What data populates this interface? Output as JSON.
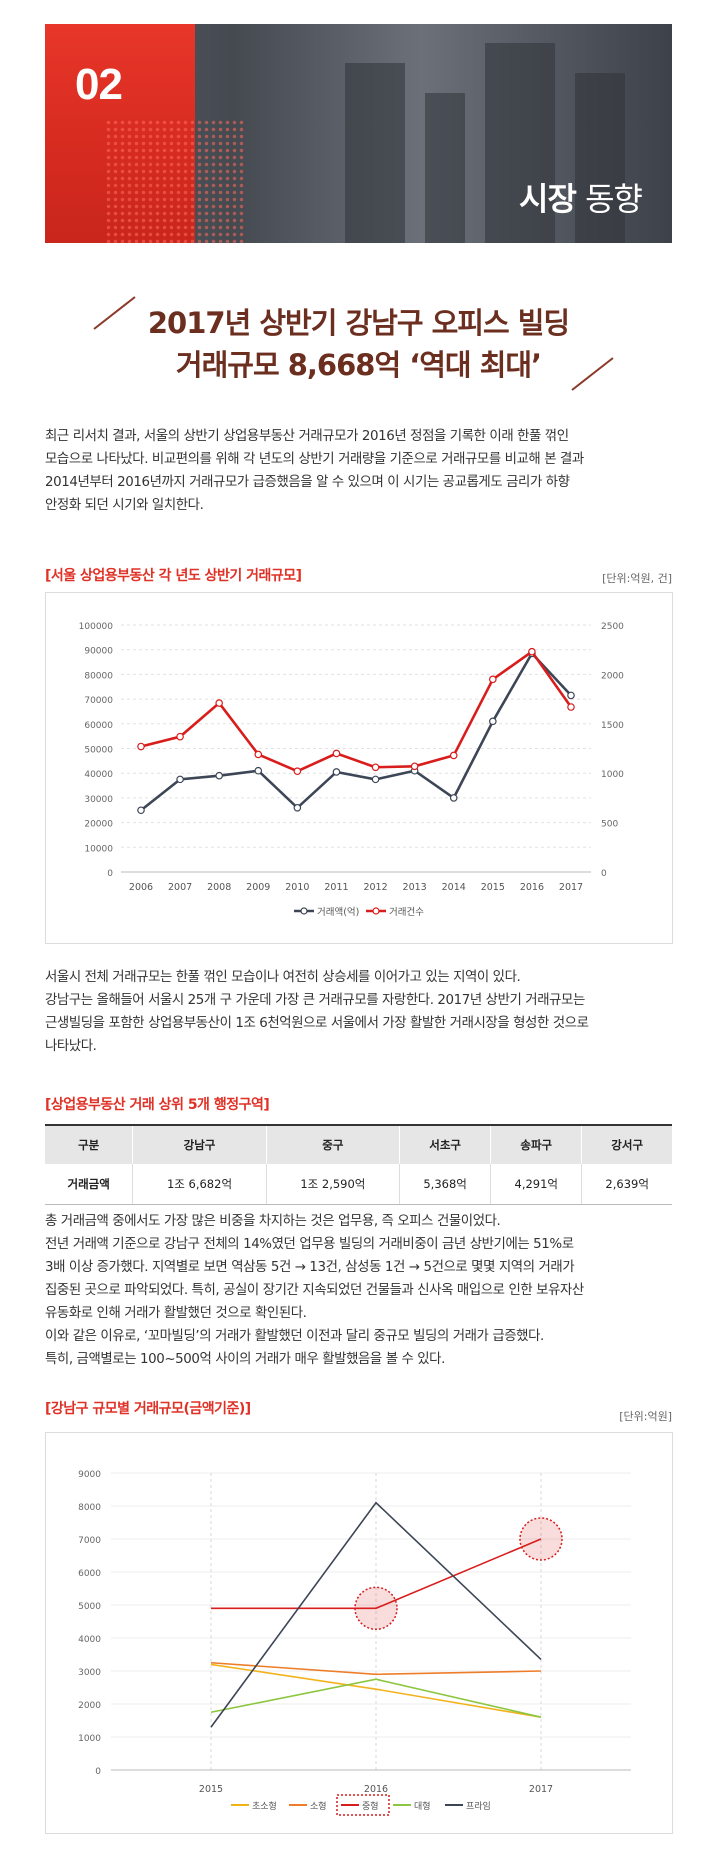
{
  "hero": {
    "number": "02",
    "title_bold": "시장",
    "title_rest": " 동향"
  },
  "headline": {
    "line1": "2017년 상반기 강남구 오피스 빌딩",
    "line2": "거래규모 8,668억 ‘역대 최대’"
  },
  "intro": [
    "최근 리서치 결과, 서울의 상반기 상업용부동산 거래규모가 2016년 정점을 기록한 이래 한풀 꺾인",
    "모습으로 나타났다. 비교편의를 위해 각 년도의 상반기 거래량을 기준으로 거래규모를 비교해 본 결과",
    "2014년부터 2016년까지 거래규모가 급증했음을 알 수 있으며 이 시기는 공교롭게도 금리가 하향",
    "안정화 되던 시기와 일치한다."
  ],
  "section1": {
    "title": "[서울 상업용부동산 각 년도 상반기 거래규모]",
    "unit": "[단위:억원, 건]"
  },
  "para2": [
    "서울시 전체 거래규모는 한풀 꺾인 모습이나 여전히 상승세를 이어가고 있는 지역이 있다.",
    "강남구는 올해들어 서울시 25개 구 가운데 가장 큰 거래규모를 자랑한다. 2017년 상반기 거래규모는",
    "근생빌딩을 포함한 상업용부동산이 1조 6천억원으로 서울에서 가장 활발한 거래시장을 형성한 것으로",
    "나타났다."
  ],
  "section2": {
    "title": "[상업용부동산 거래 상위 5개 행정구역]"
  },
  "table": {
    "headers": [
      "구분",
      "강남구",
      "중구",
      "서초구",
      "송파구",
      "강서구"
    ],
    "row": [
      "거래금액",
      "1조 6,682억",
      "1조 2,590억",
      "5,368억",
      "4,291억",
      "2,639억"
    ]
  },
  "para3": [
    "총 거래금액 중에서도 가장 많은 비중을 차지하는 것은 업무용, 즉 오피스 건물이었다.",
    "전년 거래액 기준으로 강남구 전체의 14%였던 업무용 빌딩의 거래비중이 금년 상반기에는 51%로",
    "3배 이상 증가했다. 지역별로 보면 역삼동 5건 → 13건, 삼성동 1건 → 5건으로 몇몇 지역의  거래가",
    "집중된 곳으로 파악되었다. 특히, 공실이 장기간 지속되었던 건물들과 신사옥 매입으로 인한 보유자산",
    "유동화로 인해 거래가 활발했던 것으로 확인된다.",
    "이와 같은 이유로, ‘꼬마빌딩’의 거래가 활발했던 이전과 달리 중규모 빌딩의 거래가 급증했다.",
    "특히, 금액별로는 100~500억 사이의 거래가 매우 활발했음을 볼 수 있다."
  ],
  "section3": {
    "title": "[강남구 규모별 거래규모(금액기준)]",
    "unit": "[단위:억원]"
  },
  "chart_data": [
    {
      "type": "line",
      "x": [
        "2006",
        "2007",
        "2008",
        "2009",
        "2010",
        "2011",
        "2012",
        "2013",
        "2014",
        "2015",
        "2016",
        "2017"
      ],
      "y_left_lim": [
        0,
        100000
      ],
      "y_left_ticks": [
        "0",
        "10000",
        "20000",
        "30000",
        "40000",
        "50000",
        "60000",
        "70000",
        "80000",
        "90000",
        "100000"
      ],
      "y_right_lim": [
        0,
        2500
      ],
      "y_right_ticks": [
        "0",
        "500",
        "1000",
        "1500",
        "2000",
        "2500"
      ],
      "grid": true,
      "legend": "bottom",
      "series": [
        {
          "name": "거래액(억)",
          "axis": "left",
          "color": "#3d4656",
          "values": [
            25000,
            37500,
            39000,
            41000,
            26000,
            40500,
            37500,
            41000,
            30000,
            61000,
            88500,
            71500
          ]
        },
        {
          "name": "거래건수",
          "axis": "right",
          "color": "#d91c1c",
          "values": [
            1270,
            1370,
            1710,
            1190,
            1020,
            1200,
            1060,
            1070,
            1180,
            1950,
            2230,
            1670
          ]
        }
      ]
    },
    {
      "type": "line",
      "x": [
        "2015",
        "2016",
        "2017"
      ],
      "ylim": [
        0,
        9000
      ],
      "y_ticks": [
        "0",
        "1000",
        "2000",
        "3000",
        "4000",
        "5000",
        "6000",
        "7000",
        "8000",
        "9000"
      ],
      "grid": true,
      "legend": "bottom",
      "series": [
        {
          "name": "초소형",
          "color": "#f2b21c",
          "values": [
            3200,
            2450,
            1600
          ]
        },
        {
          "name": "소형",
          "color": "#ee7d2a",
          "values": [
            3250,
            2900,
            3000
          ]
        },
        {
          "name": "중형",
          "color": "#d91c1c",
          "values": [
            4900,
            4900,
            7000
          ]
        },
        {
          "name": "대형",
          "color": "#8cc63f",
          "values": [
            1750,
            2750,
            1600
          ]
        },
        {
          "name": "프라임",
          "color": "#3d4656",
          "values": [
            1300,
            8100,
            3350
          ]
        }
      ]
    }
  ],
  "colors": {
    "accent": "#e03126",
    "headline": "#6b2e1f",
    "hero_red": "#e8362a"
  }
}
